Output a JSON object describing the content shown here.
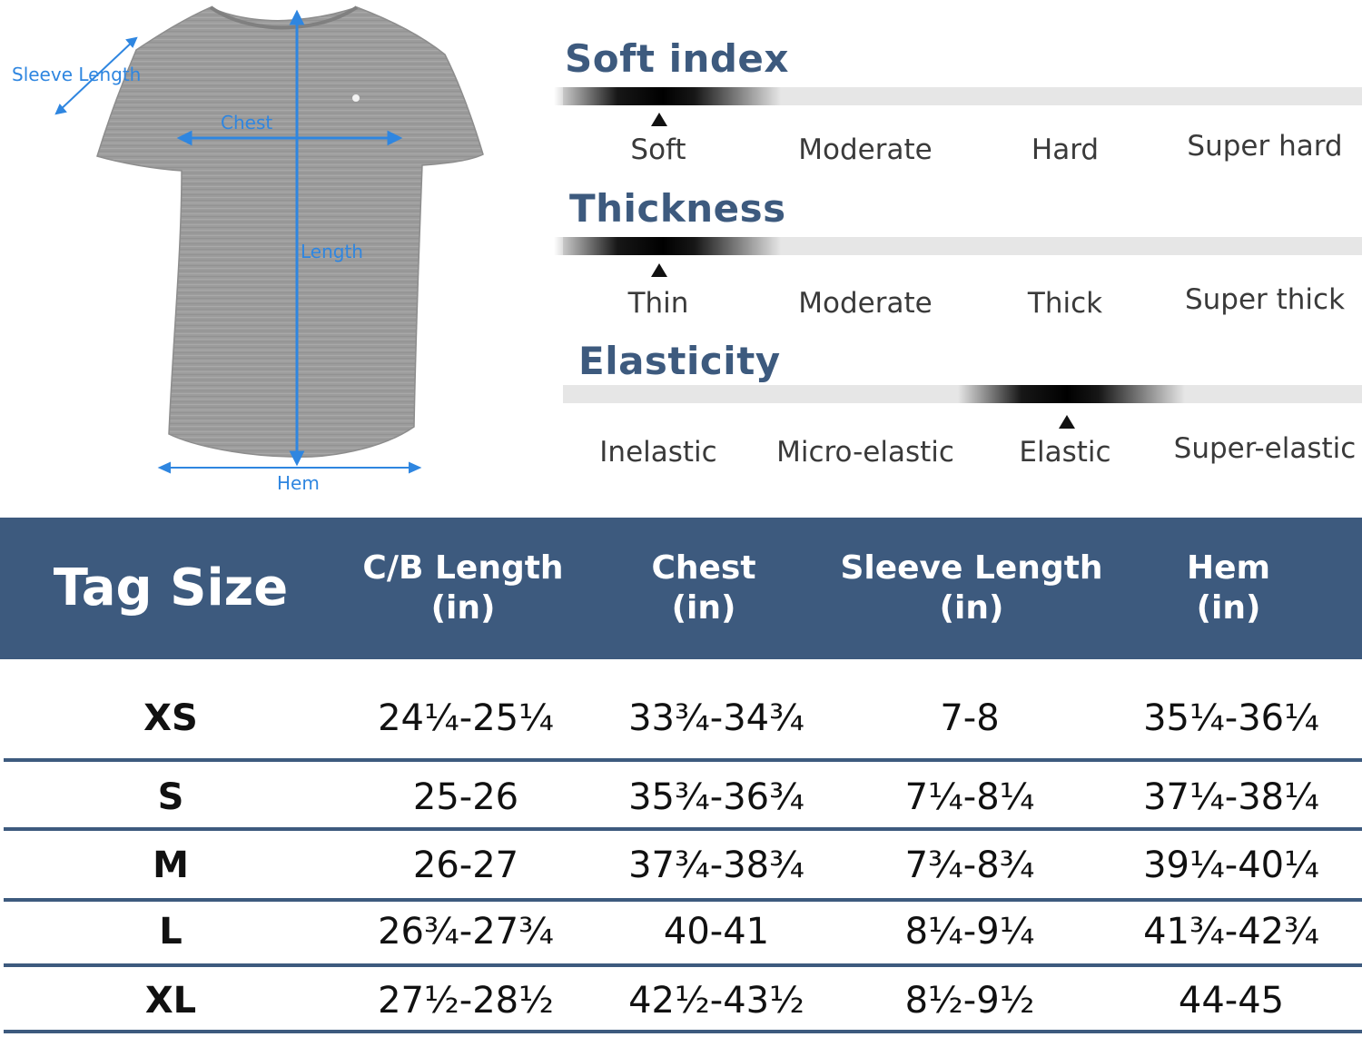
{
  "diagram": {
    "labels": {
      "sleeve_length": "Sleeve Length",
      "chest": "Chest",
      "length": "Length",
      "hem": "Hem"
    }
  },
  "scales": [
    {
      "title": "Soft index",
      "levels": [
        "Soft",
        "Moderate",
        "Hard",
        "Super hard"
      ],
      "selected_index": 0
    },
    {
      "title": "Thickness",
      "levels": [
        "Thin",
        "Moderate",
        "Thick",
        "Super thick"
      ],
      "selected_index": 0
    },
    {
      "title": "Elasticity",
      "levels": [
        "Inelastic",
        "Micro-elastic",
        "Elastic",
        "Super-elastic"
      ],
      "selected_index": 2
    }
  ],
  "size_table": {
    "header_color": "#3d5a7e",
    "columns": [
      {
        "line1": "Tag Size",
        "line2": ""
      },
      {
        "line1": "C/B Length",
        "line2": "(in)"
      },
      {
        "line1": "Chest",
        "line2": "(in)"
      },
      {
        "line1": "Sleeve Length",
        "line2": "(in)"
      },
      {
        "line1": "Hem",
        "line2": "(in)"
      }
    ],
    "rows": [
      [
        "XS",
        "24¼-25¼",
        "33¾-34¾",
        "7-8",
        "35¼-36¼"
      ],
      [
        "S",
        "25-26",
        "35¾-36¾",
        "7¼-8¼",
        "37¼-38¼"
      ],
      [
        "M",
        "26-27",
        "37¾-38¾",
        "7¾-8¾",
        "39¼-40¼"
      ],
      [
        "L",
        "26¾-27¾",
        "40-41",
        "8¼-9¼",
        "41¾-42¾"
      ],
      [
        "XL",
        "27½-28½",
        "42½-43½",
        "8½-9½",
        "44-45"
      ]
    ]
  }
}
